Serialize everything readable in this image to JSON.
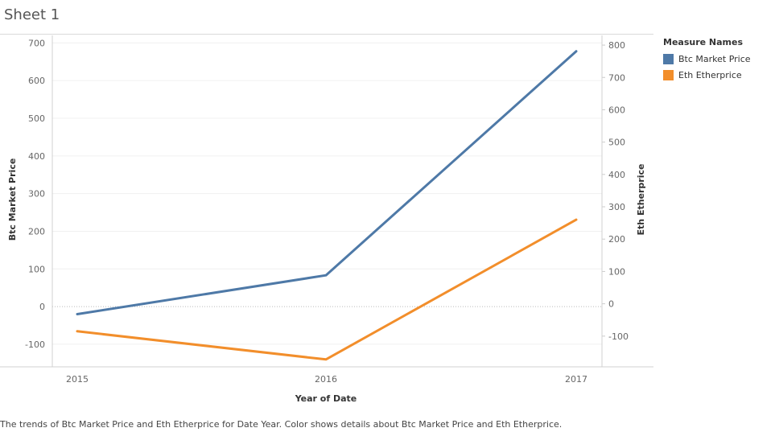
{
  "sheet": {
    "title": "Sheet 1",
    "caption": "The trends of Btc Market Price and Eth Etherprice for Date Year.  Color shows details about Btc Market Price and Eth Etherprice."
  },
  "legend": {
    "title": "Measure Names",
    "items": [
      {
        "label": "Btc Market Price",
        "color": "#4e79a7"
      },
      {
        "label": "Eth Etherprice",
        "color": "#f28e2b"
      }
    ]
  },
  "chart_data": {
    "type": "line",
    "x": [
      "2015",
      "2016",
      "2017"
    ],
    "xlabel": "Year of Date",
    "ylabel_left": "Btc Market Price",
    "ylabel_right": "Eth Etherprice",
    "ylim_left": [
      -160,
      720
    ],
    "ylim_right": [
      -195,
      830
    ],
    "yticks_left": [
      700,
      600,
      500,
      400,
      300,
      200,
      100,
      0,
      -100
    ],
    "yticks_right": [
      800,
      700,
      600,
      500,
      400,
      300,
      200,
      100,
      0,
      -100
    ],
    "series": [
      {
        "name": "Btc Market Price",
        "axis": "left",
        "color": "#4e79a7",
        "values": [
          -20,
          83,
          678
        ]
      },
      {
        "name": "Eth Etherprice",
        "axis": "right",
        "color": "#f28e2b",
        "values": [
          -85,
          -172,
          260
        ]
      }
    ],
    "grid": true,
    "legend_position": "right"
  }
}
